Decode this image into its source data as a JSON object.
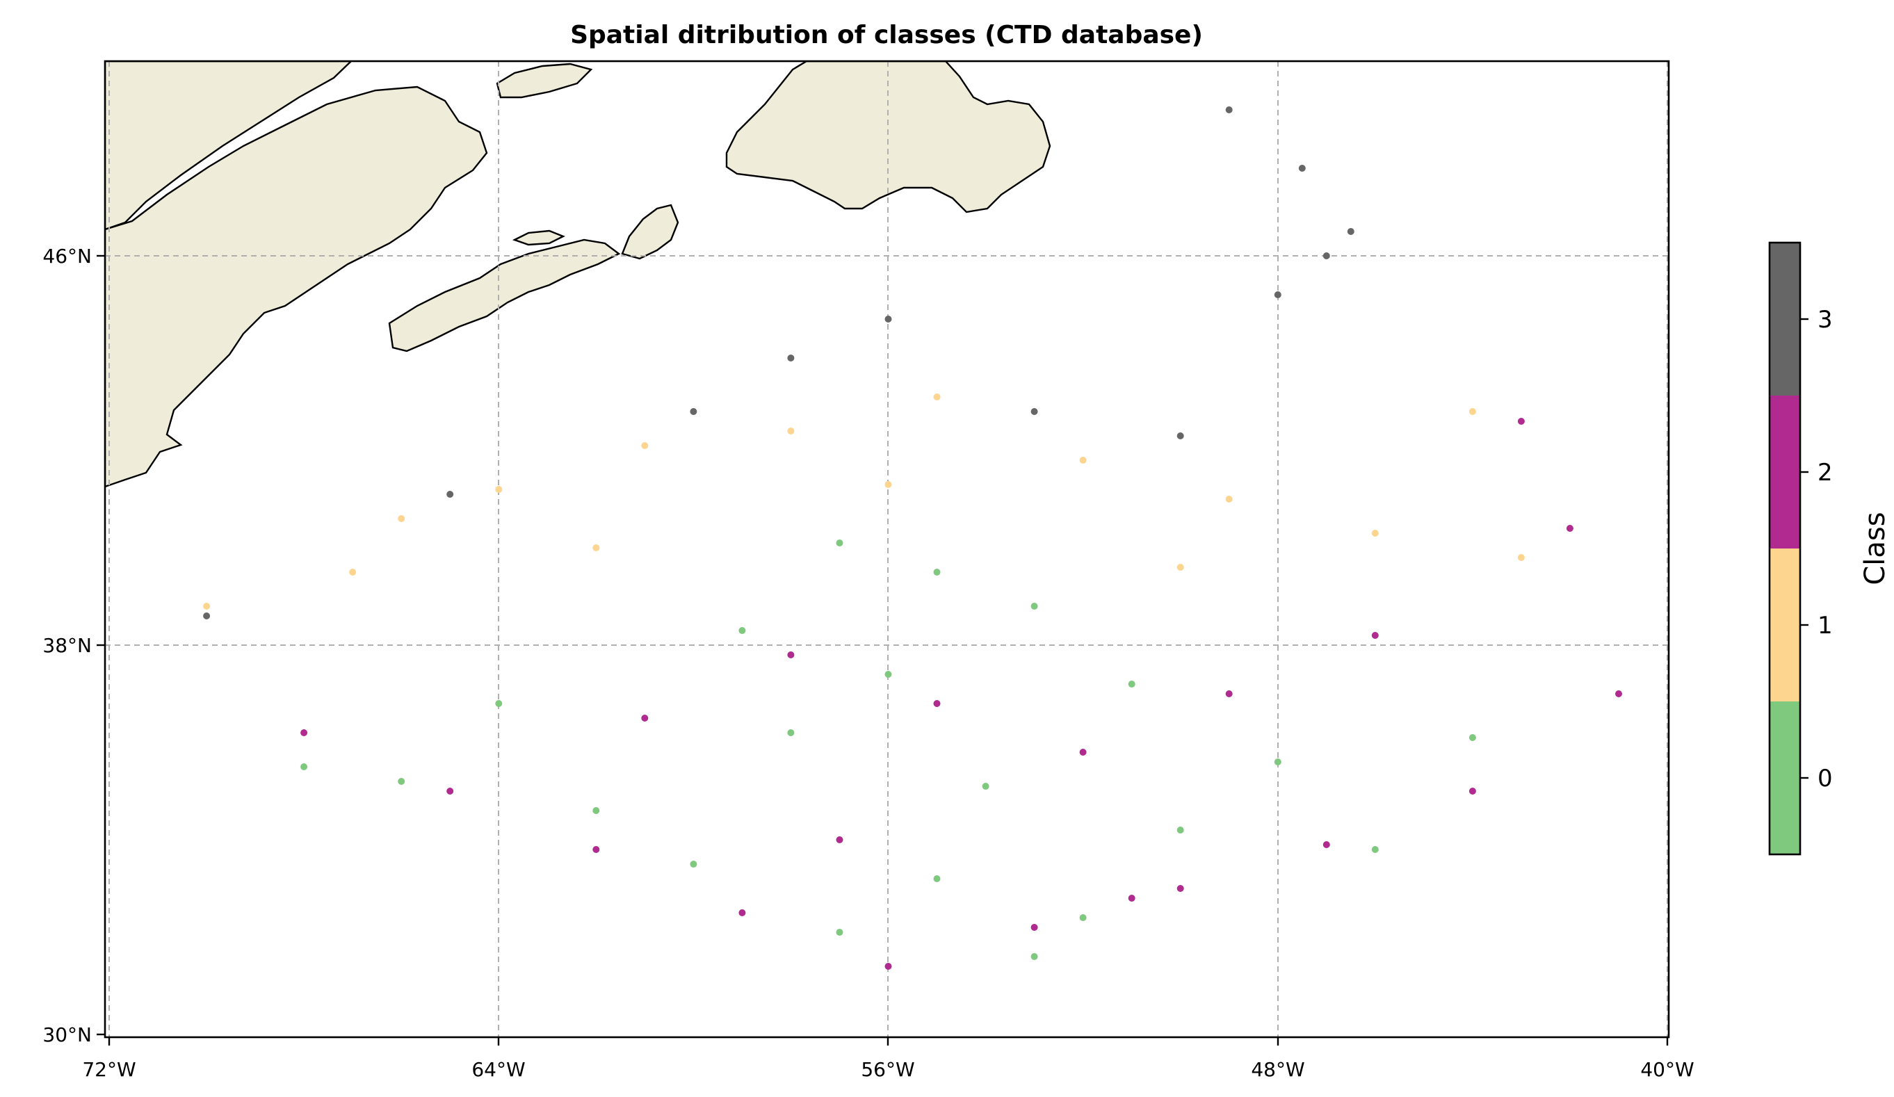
{
  "chart_data": {
    "type": "scatter",
    "title": "Spatial ditribution of classes (CTD database)",
    "xlabel": "",
    "ylabel": "",
    "xlim": [
      -72,
      -40
    ],
    "ylim": [
      30,
      50
    ],
    "x_ticks": [
      -72,
      -64,
      -56,
      -48,
      -40
    ],
    "x_tick_labels": [
      "72°W",
      "64°W",
      "56°W",
      "48°W",
      "40°W"
    ],
    "y_ticks": [
      30,
      38,
      46
    ],
    "y_tick_labels": [
      "30°N",
      "38°N",
      "46°N"
    ],
    "grid": true,
    "colorbar": {
      "label": "Class",
      "ticks": [
        0,
        1,
        2,
        3
      ],
      "tick_labels": [
        "0",
        "1",
        "2",
        "3"
      ],
      "colors": [
        "#7fc97f",
        "#fdd58f",
        "#b02a8f",
        "#666666"
      ]
    },
    "land_color": "#efedda",
    "series": [
      {
        "class": 0,
        "color": "#7fc97f",
        "points": [
          [
            -55,
            33.2
          ],
          [
            -57,
            32.1
          ],
          [
            -53,
            31.6
          ],
          [
            -60,
            33.5
          ],
          [
            -62,
            34.6
          ],
          [
            -66,
            35.2
          ],
          [
            -68,
            35.5
          ],
          [
            -58,
            36.2
          ],
          [
            -54,
            35.1
          ],
          [
            -50,
            34.2
          ],
          [
            -46,
            33.8
          ],
          [
            -52,
            32.4
          ],
          [
            -48,
            35.6
          ],
          [
            -44,
            36.1
          ],
          [
            -64,
            36.8
          ],
          [
            -56,
            37.4
          ],
          [
            -59,
            38.3
          ],
          [
            -53,
            38.8
          ],
          [
            -55,
            39.5
          ],
          [
            -57,
            40.1
          ],
          [
            -51,
            37.2
          ]
        ]
      },
      {
        "class": 1,
        "color": "#fdd58f",
        "points": [
          [
            -70,
            38.8
          ],
          [
            -67,
            39.5
          ],
          [
            -64,
            41.2
          ],
          [
            -61,
            42.1
          ],
          [
            -58,
            42.4
          ],
          [
            -55,
            43.1
          ],
          [
            -52,
            41.8
          ],
          [
            -49,
            41.0
          ],
          [
            -46,
            40.3
          ],
          [
            -44,
            42.8
          ],
          [
            -62,
            40.0
          ],
          [
            -66,
            40.6
          ],
          [
            -56,
            41.3
          ],
          [
            -50,
            39.6
          ],
          [
            -43,
            39.8
          ]
        ]
      },
      {
        "class": 2,
        "color": "#b02a8f",
        "points": [
          [
            -68,
            36.2
          ],
          [
            -65,
            35.0
          ],
          [
            -62,
            33.8
          ],
          [
            -59,
            32.5
          ],
          [
            -56,
            31.4
          ],
          [
            -53,
            32.2
          ],
          [
            -50,
            33.0
          ],
          [
            -47,
            33.9
          ],
          [
            -44,
            35.0
          ],
          [
            -41,
            37.0
          ],
          [
            -42,
            40.4
          ],
          [
            -43,
            42.6
          ],
          [
            -46,
            38.2
          ],
          [
            -49,
            37.0
          ],
          [
            -52,
            35.8
          ],
          [
            -55,
            36.8
          ],
          [
            -58,
            37.8
          ],
          [
            -61,
            36.5
          ],
          [
            -57,
            34.0
          ],
          [
            -51,
            32.8
          ]
        ]
      },
      {
        "class": 3,
        "color": "#666666",
        "points": [
          [
            -47,
            46.0
          ],
          [
            -48,
            45.2
          ],
          [
            -46.5,
            46.5
          ],
          [
            -47.5,
            47.8
          ],
          [
            -49,
            49.0
          ],
          [
            -56,
            44.7
          ],
          [
            -58,
            43.9
          ],
          [
            -60,
            42.8
          ],
          [
            -50,
            42.3
          ],
          [
            -53,
            42.8
          ],
          [
            -65,
            41.1
          ],
          [
            -70,
            38.6
          ]
        ]
      }
    ]
  }
}
